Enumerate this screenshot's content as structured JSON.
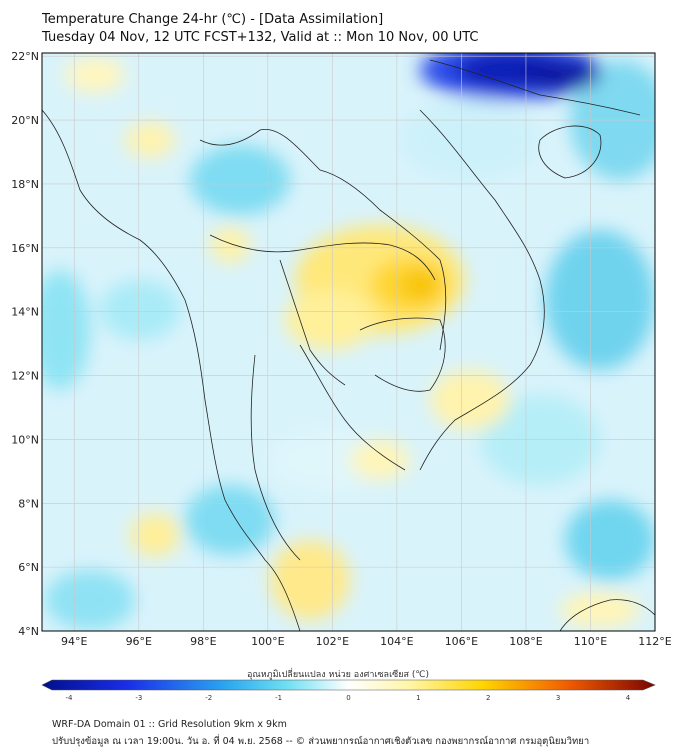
{
  "header": {
    "title_line1": "Temperature Change 24-hr (℃) - [Data Assimilation]",
    "title_line2": "Tuesday 04 Nov, 12 UTC FCST+132, Valid at :: Mon 10 Nov, 00 UTC"
  },
  "map": {
    "region": "Thailand and Southeast Asia",
    "lon_labels": [
      "94°E",
      "96°E",
      "98°E",
      "100°E",
      "102°E",
      "104°E",
      "106°E",
      "108°E",
      "110°E",
      "112°E"
    ],
    "lat_labels": [
      "22°N",
      "20°N",
      "18°N",
      "16°N",
      "14°N",
      "12°N",
      "10°N",
      "8°N",
      "6°N",
      "4°N"
    ],
    "lon_range": [
      93,
      112
    ],
    "lat_range": [
      4,
      22.1
    ],
    "colors": {
      "cool_strong": "#0a1fb5",
      "cool": "#55d6ef",
      "neutral": "#f4fbfe",
      "warm": "#ffe872",
      "warm_strong": "#f2b400",
      "boundary": "#000000"
    }
  },
  "colorbar": {
    "label": "อุณหภูมิเปลี่ยนแปลง หน่วย องศาเซลเซียส (℃)",
    "ticks": [
      "-4",
      "-3",
      "-2",
      "-1",
      "0",
      "1",
      "2",
      "3",
      "4"
    ],
    "min": -4,
    "max": 4
  },
  "footer": {
    "line1": "WRF-DA Domain 01 :: Grid Resolution 9km x 9km",
    "line2": "ปรับปรุงข้อมูล ณ เวลา 19:00น. วัน อ. ที่ 04 พ.ย. 2568 -- © ส่วนพยากรณ์อากาศเชิงตัวเลข กองพยากรณ์อากาศ กรมอุตุนิยมวิทยา"
  }
}
